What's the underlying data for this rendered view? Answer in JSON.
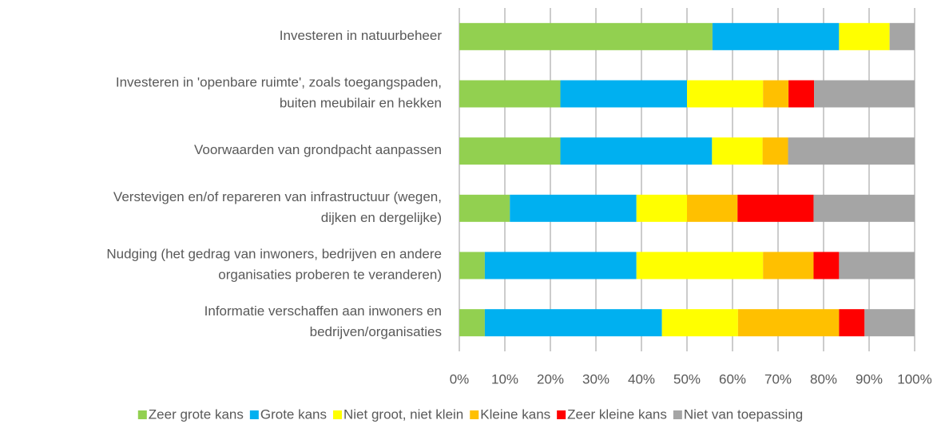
{
  "chart_data": {
    "type": "stacked-bar-horizontal",
    "categories": [
      [
        "Investeren in natuurbeheer"
      ],
      [
        "Investeren in 'openbare ruimte', zoals toegangspaden,",
        "buiten meubilair en hekken"
      ],
      [
        "Voorwaarden van grondpacht aanpassen"
      ],
      [
        "Verstevigen en/of repareren van infrastructuur (wegen,",
        "dijken en dergelijke)"
      ],
      [
        "Nudging (het gedrag van inwoners, bedrijven en andere",
        "organisaties proberen te veranderen)"
      ],
      [
        "Informatie verschaffen aan inwoners en",
        "bedrijven/organisaties"
      ]
    ],
    "series": [
      {
        "name": "Zeer grote kans",
        "color": "#92d050",
        "values": [
          55.6,
          22.2,
          22.2,
          11.1,
          5.6,
          5.6
        ]
      },
      {
        "name": "Grote kans",
        "color": "#00b0f0",
        "values": [
          27.8,
          27.8,
          33.3,
          27.8,
          33.3,
          38.9
        ]
      },
      {
        "name": "Niet groot, niet klein",
        "color": "#ffff00",
        "values": [
          11.1,
          16.7,
          11.1,
          11.1,
          27.8,
          16.7
        ]
      },
      {
        "name": "Kleine kans",
        "color": "#ffc000",
        "values": [
          0,
          5.6,
          5.6,
          11.1,
          11.1,
          22.2
        ]
      },
      {
        "name": "Zeer kleine kans",
        "color": "#ff0000",
        "values": [
          0,
          5.6,
          0,
          16.7,
          5.6,
          5.6
        ]
      },
      {
        "name": "Niet van toepassing",
        "color": "#a5a5a5",
        "values": [
          5.6,
          22.2,
          27.8,
          22.2,
          16.7,
          11.1
        ]
      }
    ],
    "xlim": [
      0,
      100
    ],
    "xticks": [
      {
        "value": 0,
        "label": "0%"
      },
      {
        "value": 10,
        "label": "10%"
      },
      {
        "value": 20,
        "label": "20%"
      },
      {
        "value": 30,
        "label": "30%"
      },
      {
        "value": 40,
        "label": "40%"
      },
      {
        "value": 50,
        "label": "50%"
      },
      {
        "value": 60,
        "label": "60%"
      },
      {
        "value": 70,
        "label": "70%"
      },
      {
        "value": 80,
        "label": "80%"
      },
      {
        "value": 90,
        "label": "90%"
      },
      {
        "value": 100,
        "label": "100%"
      }
    ],
    "grid": true,
    "legend": "bottom"
  }
}
